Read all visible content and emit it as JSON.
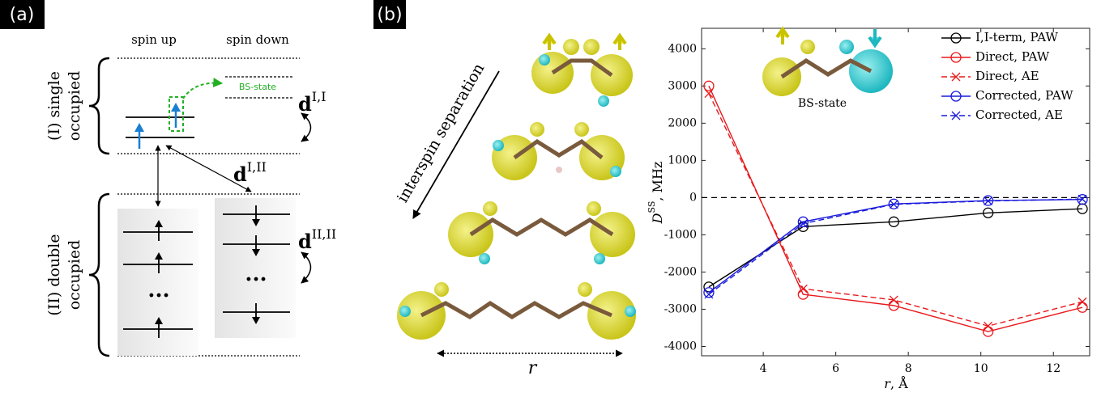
{
  "panel_a": {
    "label": "(a)",
    "spin_up": "spin up",
    "spin_down": "spin down",
    "group_1": [
      "(I) single",
      "occupied"
    ],
    "group_2": [
      "(II) double",
      "occupied"
    ],
    "bs_state": "BS-state",
    "dots": [
      "...",
      "..."
    ],
    "couplings": [
      {
        "base": "d",
        "sup": "I,I"
      },
      {
        "base": "d",
        "sup": "I,II"
      },
      {
        "base": "d",
        "sup": "II,II"
      }
    ]
  },
  "panel_b": {
    "label": "(b)",
    "arrow_text": "interspin separation",
    "distance": "r"
  },
  "chart_data": {
    "type": "line",
    "x": [
      2.5,
      5.1,
      7.6,
      10.2,
      12.8
    ],
    "xlabel": {
      "symbol": "r",
      "unit": ", Å"
    },
    "ylabel": {
      "symbol": "D",
      "superscript": "SS",
      "unit": ", MHz"
    },
    "xlim": [
      2.3,
      13.0
    ],
    "xticks": [
      4,
      6,
      8,
      10,
      12
    ],
    "ylim": [
      -4250,
      4550
    ],
    "yticks": [
      -4000,
      -3000,
      -2000,
      -1000,
      0,
      1000,
      2000,
      3000,
      4000
    ],
    "reference_line": 0,
    "inset_label": "BS-state",
    "legend": "upper right",
    "series": [
      {
        "name": "I,I-term, PAW",
        "color": "#000000",
        "marker": "o",
        "dash": "solid",
        "values": [
          -2400,
          -780,
          -650,
          -410,
          -300
        ]
      },
      {
        "name": "Direct, PAW",
        "color": "#e8191c",
        "marker": "o",
        "dash": "solid",
        "values": [
          3000,
          -2600,
          -2900,
          -3600,
          -2950
        ]
      },
      {
        "name": "Direct, AE",
        "color": "#e8191c",
        "marker": "x",
        "dash": "dashed",
        "values": [
          2800,
          -2450,
          -2750,
          -3450,
          -2800
        ]
      },
      {
        "name": "Corrected, PAW",
        "color": "#1a1adc",
        "marker": "o",
        "dash": "solid",
        "values": [
          -2550,
          -650,
          -170,
          -80,
          -50
        ]
      },
      {
        "name": "Corrected, AE",
        "color": "#1a1adc",
        "marker": "x",
        "dash": "dashed",
        "values": [
          -2600,
          -700,
          -180,
          -90,
          -40
        ]
      }
    ]
  }
}
